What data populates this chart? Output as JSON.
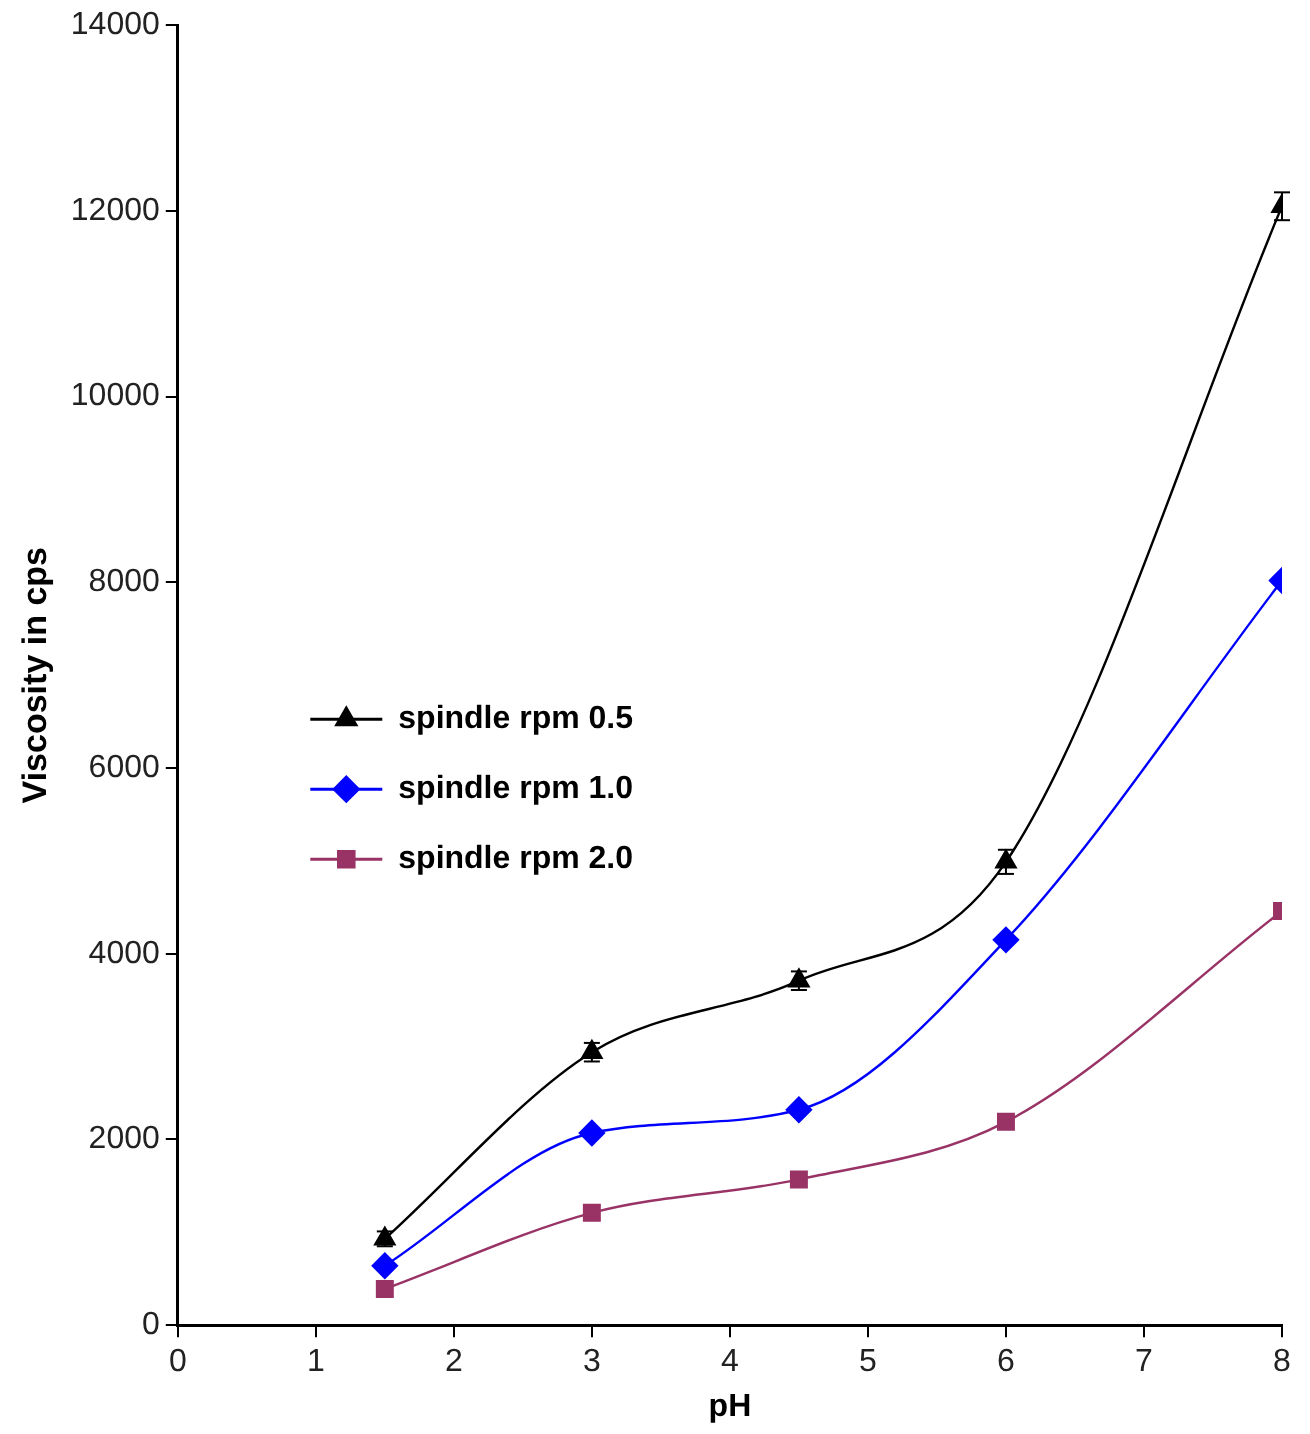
{
  "chart_data": {
    "type": "line",
    "xlabel": "pH",
    "ylabel": "Viscosity in cps",
    "xlim": [
      0,
      8
    ],
    "xticks": [
      0,
      1,
      2,
      3,
      4,
      5,
      6,
      7,
      8
    ],
    "ylim": [
      0,
      14000
    ],
    "yticks": [
      0,
      2000,
      4000,
      6000,
      8000,
      10000,
      12000,
      14000
    ],
    "grid": false,
    "legend": "left",
    "x": [
      1.5,
      3,
      4.5,
      6,
      8
    ],
    "series": [
      {
        "name": "spindle rpm 0.5",
        "color": "#000000",
        "marker": "triangle",
        "values": [
          930,
          2940,
          3710,
          4990,
          12050
        ],
        "errors": [
          80,
          100,
          100,
          130,
          150
        ]
      },
      {
        "name": "spindle rpm 1.0",
        "color": "#0000ff",
        "marker": "diamond",
        "values": [
          640,
          2070,
          2320,
          4150,
          8020
        ]
      },
      {
        "name": "spindle rpm 2.0",
        "color": "#993366",
        "marker": "square",
        "values": [
          390,
          1210,
          1570,
          2190,
          4460
        ]
      }
    ]
  }
}
